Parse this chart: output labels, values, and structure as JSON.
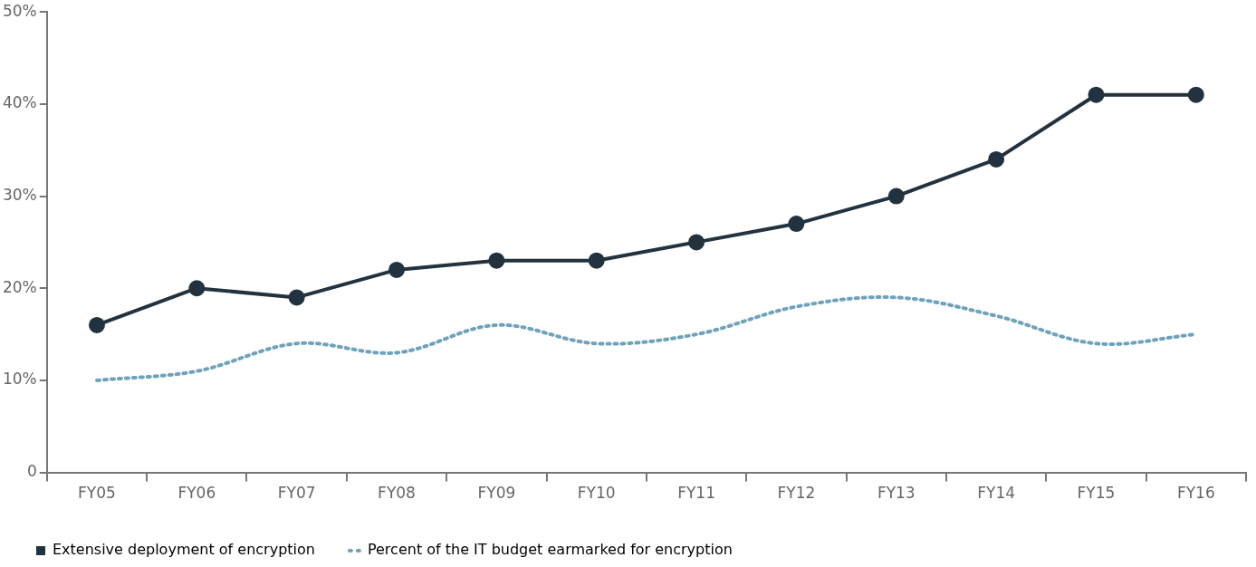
{
  "chart_data": {
    "type": "line",
    "categories": [
      "FY05",
      "FY06",
      "FY07",
      "FY08",
      "FY09",
      "FY10",
      "FY11",
      "FY12",
      "FY13",
      "FY14",
      "FY15",
      "FY16"
    ],
    "series": [
      {
        "name": "Extensive deployment of encryption",
        "color": "#22323f",
        "marker": "circle",
        "line_style": "solid",
        "values": [
          16,
          20,
          19,
          22,
          23,
          23,
          25,
          27,
          30,
          34,
          41,
          41
        ]
      },
      {
        "name": "Percent of the IT budget earmarked for encryption",
        "color": "#6fa3bb",
        "marker": "none",
        "line_style": "dotted",
        "values": [
          10,
          11,
          14,
          13,
          16,
          14,
          15,
          18,
          19,
          17,
          14,
          15
        ]
      }
    ],
    "ylim": [
      0,
      50
    ],
    "yticks": [
      {
        "value": 0,
        "label": "0"
      },
      {
        "value": 10,
        "label": "10%"
      },
      {
        "value": 20,
        "label": "20%"
      },
      {
        "value": 30,
        "label": "30%"
      },
      {
        "value": 40,
        "label": "40%"
      },
      {
        "value": 50,
        "label": "50%"
      }
    ],
    "grid": false,
    "legend": "bottom left"
  }
}
